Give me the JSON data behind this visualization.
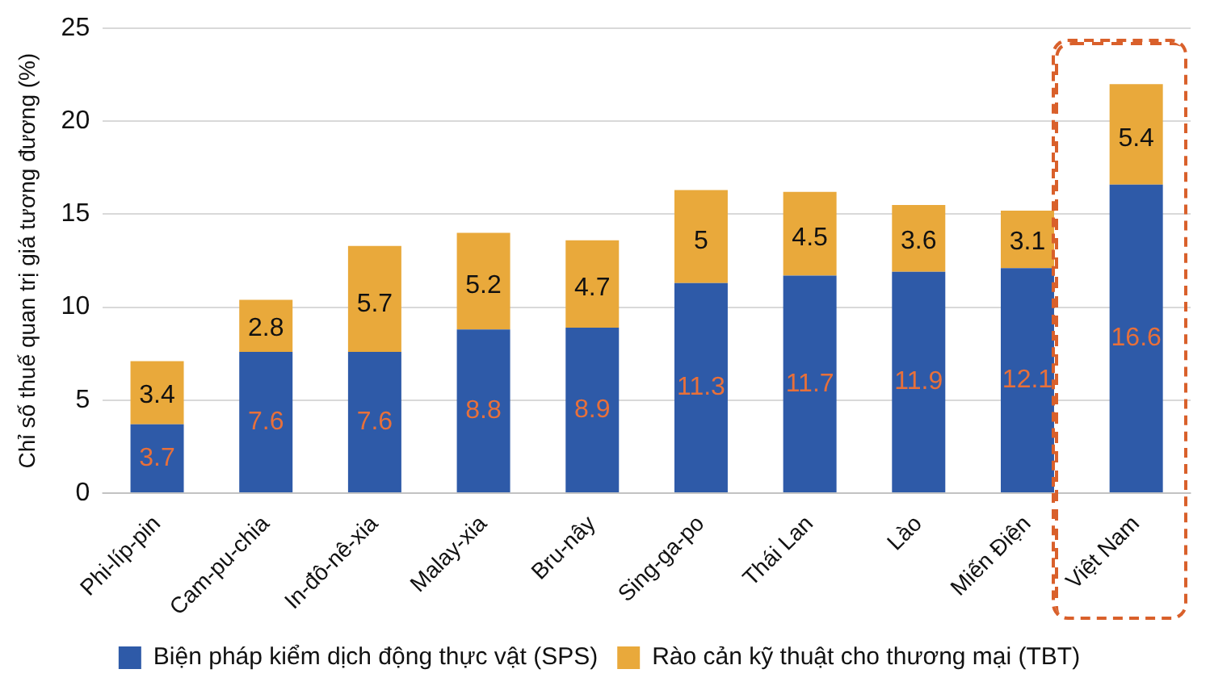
{
  "chart_data": {
    "type": "bar",
    "stacked": true,
    "ylabel": "Chỉ số thuế quan trị giá tương đương (%)",
    "categories": [
      "Phi-líp-pin",
      "Cam-pu-chia",
      "In-đô-nê-xia",
      "Malay-xia",
      "Bru-nây",
      "Sing-ga-po",
      "Thái Lan",
      "Lào",
      "Miến Điện",
      "Việt Nam"
    ],
    "series": [
      {
        "name": "Biện pháp kiểm dịch động thực vật (SPS)",
        "color": "#2e5aa8",
        "values": [
          3.7,
          7.6,
          7.6,
          8.8,
          8.9,
          11.3,
          11.7,
          11.9,
          12.1,
          16.6
        ]
      },
      {
        "name": "Rào cản kỹ thuật cho thương mại (TBT)",
        "color": "#e9a93b",
        "values": [
          3.4,
          2.8,
          5.7,
          5.2,
          4.7,
          5,
          4.5,
          3.6,
          3.1,
          5.4
        ]
      }
    ],
    "ylim": [
      0,
      25
    ],
    "yticks": [
      0,
      5,
      10,
      15,
      20,
      25
    ],
    "grid": "y",
    "legend": "bottom",
    "data_labels": true
  }
}
